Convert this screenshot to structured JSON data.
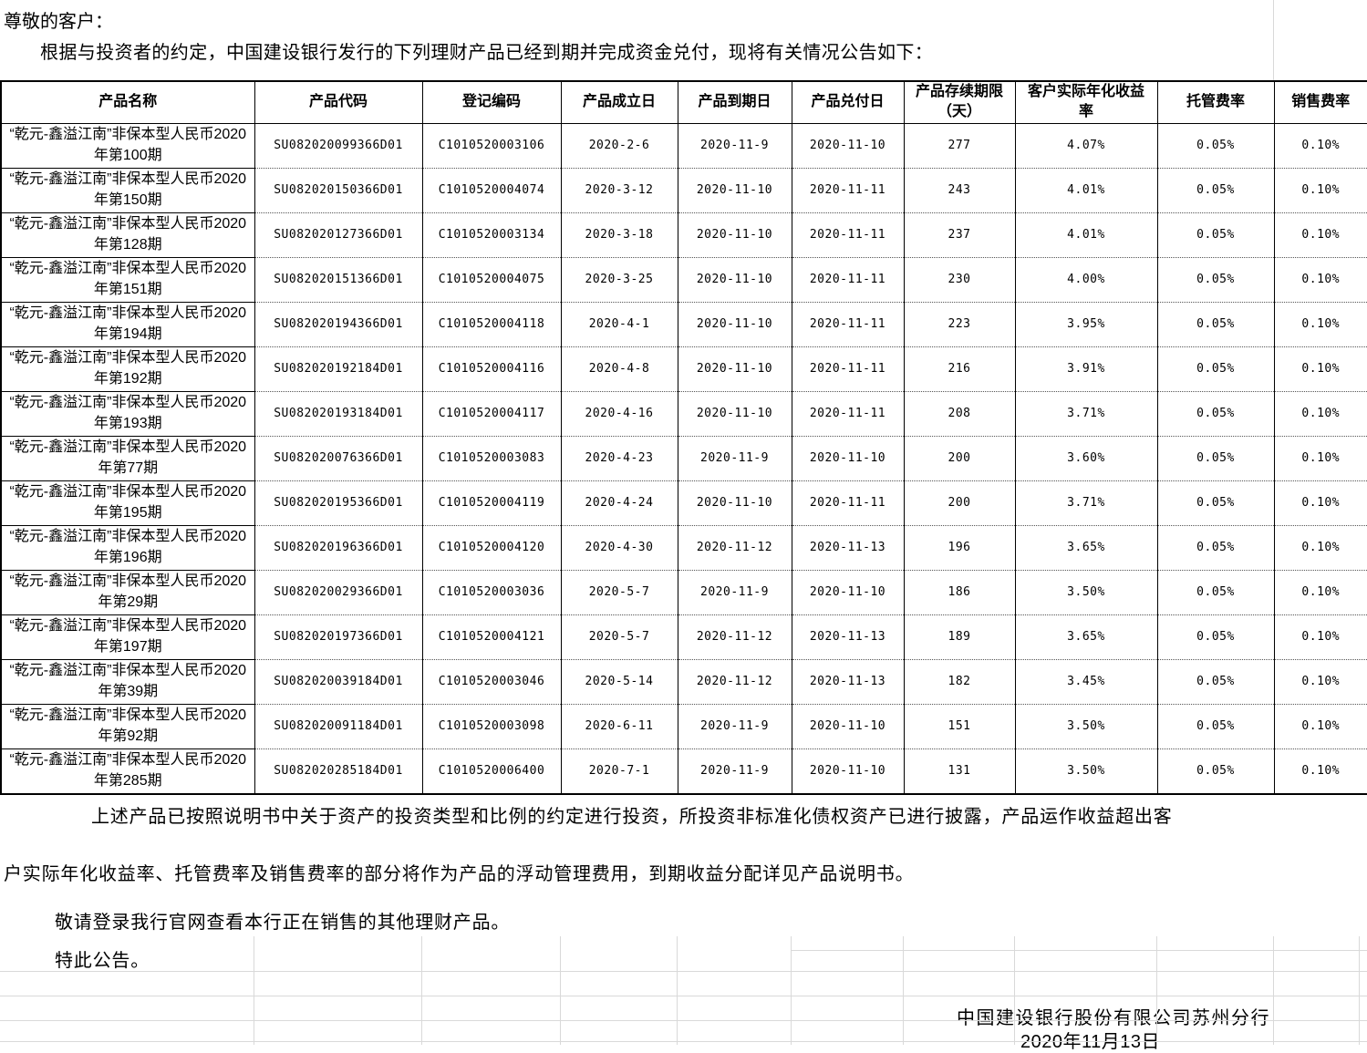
{
  "style": {
    "gridline_color": "#d9d9d9",
    "table_border_color": "#000000",
    "text_color": "#000000"
  },
  "header": {
    "greeting": "尊敬的客户：",
    "intro": "根据与投资者的约定，中国建设银行发行的下列理财产品已经到期并完成资金兑付，现将有关情况公告如下："
  },
  "table": {
    "headers": [
      "产品名称",
      "产品代码",
      "登记编码",
      "产品成立日",
      "产品到期日",
      "产品兑付日",
      "产品存续期限（天）",
      "客户实际年化收益率",
      "托管费率",
      "销售费率"
    ],
    "rows": [
      [
        "“乾元-鑫溢江南”非保本型人民币2020年第100期",
        "SU082020099366D01",
        "C1010520003106",
        "2020-2-6",
        "2020-11-9",
        "2020-11-10",
        "277",
        "4.07%",
        "0.05%",
        "0.10%"
      ],
      [
        "“乾元-鑫溢江南”非保本型人民币2020年第150期",
        "SU082020150366D01",
        "C1010520004074",
        "2020-3-12",
        "2020-11-10",
        "2020-11-11",
        "243",
        "4.01%",
        "0.05%",
        "0.10%"
      ],
      [
        "“乾元-鑫溢江南”非保本型人民币2020年第128期",
        "SU082020127366D01",
        "C1010520003134",
        "2020-3-18",
        "2020-11-10",
        "2020-11-11",
        "237",
        "4.01%",
        "0.05%",
        "0.10%"
      ],
      [
        "“乾元-鑫溢江南”非保本型人民币2020年第151期",
        "SU082020151366D01",
        "C1010520004075",
        "2020-3-25",
        "2020-11-10",
        "2020-11-11",
        "230",
        "4.00%",
        "0.05%",
        "0.10%"
      ],
      [
        "“乾元-鑫溢江南”非保本型人民币2020年第194期",
        "SU082020194366D01",
        "C1010520004118",
        "2020-4-1",
        "2020-11-10",
        "2020-11-11",
        "223",
        "3.95%",
        "0.05%",
        "0.10%"
      ],
      [
        "“乾元-鑫溢江南”非保本型人民币2020年第192期",
        "SU082020192184D01",
        "C1010520004116",
        "2020-4-8",
        "2020-11-10",
        "2020-11-11",
        "216",
        "3.91%",
        "0.05%",
        "0.10%"
      ],
      [
        "“乾元-鑫溢江南”非保本型人民币2020年第193期",
        "SU082020193184D01",
        "C1010520004117",
        "2020-4-16",
        "2020-11-10",
        "2020-11-11",
        "208",
        "3.71%",
        "0.05%",
        "0.10%"
      ],
      [
        "“乾元-鑫溢江南”非保本型人民币2020年第77期",
        "SU082020076366D01",
        "C1010520003083",
        "2020-4-23",
        "2020-11-9",
        "2020-11-10",
        "200",
        "3.60%",
        "0.05%",
        "0.10%"
      ],
      [
        "“乾元-鑫溢江南”非保本型人民币2020年第195期",
        "SU082020195366D01",
        "C1010520004119",
        "2020-4-24",
        "2020-11-10",
        "2020-11-11",
        "200",
        "3.71%",
        "0.05%",
        "0.10%"
      ],
      [
        "“乾元-鑫溢江南”非保本型人民币2020年第196期",
        "SU082020196366D01",
        "C1010520004120",
        "2020-4-30",
        "2020-11-12",
        "2020-11-13",
        "196",
        "3.65%",
        "0.05%",
        "0.10%"
      ],
      [
        "“乾元-鑫溢江南”非保本型人民币2020年第29期",
        "SU082020029366D01",
        "C1010520003036",
        "2020-5-7",
        "2020-11-9",
        "2020-11-10",
        "186",
        "3.50%",
        "0.05%",
        "0.10%"
      ],
      [
        "“乾元-鑫溢江南”非保本型人民币2020年第197期",
        "SU082020197366D01",
        "C1010520004121",
        "2020-5-7",
        "2020-11-12",
        "2020-11-13",
        "189",
        "3.65%",
        "0.05%",
        "0.10%"
      ],
      [
        "“乾元-鑫溢江南”非保本型人民币2020年第39期",
        "SU082020039184D01",
        "C1010520003046",
        "2020-5-14",
        "2020-11-12",
        "2020-11-13",
        "182",
        "3.45%",
        "0.05%",
        "0.10%"
      ],
      [
        "“乾元-鑫溢江南”非保本型人民币2020年第92期",
        "SU082020091184D01",
        "C1010520003098",
        "2020-6-11",
        "2020-11-9",
        "2020-11-10",
        "151",
        "3.50%",
        "0.05%",
        "0.10%"
      ],
      [
        "“乾元-鑫溢江南”非保本型人民币2020年第285期",
        "SU082020285184D01",
        "C1010520006400",
        "2020-7-1",
        "2020-11-9",
        "2020-11-10",
        "131",
        "3.50%",
        "0.05%",
        "0.10%"
      ]
    ]
  },
  "footer": {
    "para_line1": "上述产品已按照说明书中关于资产的投资类型和比例的约定进行投资，所投资非标准化债权资产已进行披露，产品运作收益超出客",
    "para_line2": "户实际年化收益率、托管费率及销售费率的部分将作为产品的浮动管理费用，到期收益分配详见产品说明书。",
    "note": "敬请登录我行官网查看本行正在销售的其他理财产品。",
    "announce": "特此公告。",
    "signature": "中国建设银行股份有限公司苏州分行",
    "date": "2020年11月13日"
  }
}
